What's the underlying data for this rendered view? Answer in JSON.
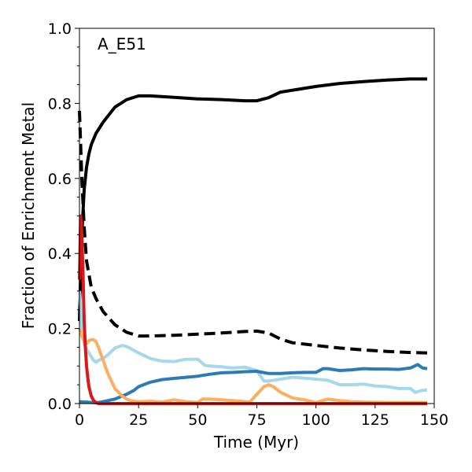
{
  "chart_data": {
    "type": "line",
    "title": "",
    "annotation": "A_E51",
    "xlabel": "Time (Myr)",
    "ylabel": "Fraction of Enrichment Metal",
    "xlim": [
      0,
      150
    ],
    "ylim": [
      0,
      1.0
    ],
    "xticks": [
      0,
      25,
      50,
      75,
      100,
      125,
      150
    ],
    "yticks": [
      0.0,
      0.2,
      0.4,
      0.6,
      0.8,
      1.0
    ],
    "xtick_labels": [
      "0",
      "25",
      "50",
      "75",
      "100",
      "125",
      "150"
    ],
    "ytick_labels": [
      "0.0",
      "0.2",
      "0.4",
      "0.6",
      "0.8",
      "1.0"
    ],
    "grid": false,
    "series": [
      {
        "name": "black-solid",
        "color": "#000000",
        "dash": "solid",
        "x": [
          0,
          0.5,
          1,
          2,
          3,
          4,
          5,
          7,
          10,
          15,
          20,
          25,
          30,
          40,
          50,
          60,
          70,
          75,
          80,
          85,
          90,
          100,
          110,
          120,
          130,
          140,
          147
        ],
        "y": [
          0.22,
          0.35,
          0.45,
          0.57,
          0.63,
          0.665,
          0.69,
          0.72,
          0.75,
          0.79,
          0.81,
          0.82,
          0.82,
          0.816,
          0.812,
          0.81,
          0.807,
          0.807,
          0.815,
          0.83,
          0.835,
          0.845,
          0.853,
          0.858,
          0.862,
          0.865,
          0.865
        ]
      },
      {
        "name": "black-dashed",
        "color": "#000000",
        "dash": "dashed",
        "x": [
          0,
          1,
          2,
          3,
          5,
          7,
          10,
          15,
          20,
          25,
          30,
          40,
          50,
          60,
          70,
          75,
          80,
          85,
          90,
          100,
          110,
          120,
          130,
          140,
          147
        ],
        "y": [
          0.78,
          0.6,
          0.47,
          0.38,
          0.31,
          0.28,
          0.245,
          0.21,
          0.19,
          0.18,
          0.18,
          0.182,
          0.185,
          0.188,
          0.192,
          0.193,
          0.188,
          0.172,
          0.162,
          0.155,
          0.148,
          0.143,
          0.139,
          0.136,
          0.135
        ]
      },
      {
        "name": "light-blue",
        "color": "#a6d8ec",
        "dash": "solid",
        "x": [
          0,
          1,
          2,
          3,
          4,
          5,
          6,
          7,
          8,
          10,
          12,
          15,
          18,
          20,
          22,
          25,
          30,
          35,
          40,
          45,
          50,
          53,
          55,
          60,
          65,
          70,
          75,
          78,
          80,
          85,
          90,
          95,
          100,
          105,
          110,
          115,
          120,
          125,
          130,
          135,
          140,
          142,
          145,
          147
        ],
        "y": [
          0.3,
          0.2,
          0.16,
          0.145,
          0.135,
          0.125,
          0.115,
          0.11,
          0.115,
          0.12,
          0.13,
          0.148,
          0.155,
          0.152,
          0.145,
          0.135,
          0.12,
          0.113,
          0.112,
          0.118,
          0.118,
          0.102,
          0.1,
          0.098,
          0.095,
          0.097,
          0.088,
          0.06,
          0.06,
          0.065,
          0.07,
          0.068,
          0.065,
          0.062,
          0.05,
          0.05,
          0.052,
          0.047,
          0.045,
          0.04,
          0.04,
          0.03,
          0.035,
          0.036
        ]
      },
      {
        "name": "dark-blue",
        "color": "#2c7bb6",
        "dash": "solid",
        "x": [
          0,
          3,
          5,
          7,
          8,
          10,
          15,
          20,
          23,
          25,
          30,
          35,
          40,
          45,
          50,
          55,
          60,
          65,
          70,
          75,
          80,
          85,
          90,
          95,
          100,
          103,
          105,
          110,
          115,
          120,
          125,
          130,
          135,
          140,
          143,
          145,
          147
        ],
        "y": [
          0.005,
          0.004,
          0.003,
          0.002,
          0.003,
          0.005,
          0.012,
          0.025,
          0.035,
          0.045,
          0.057,
          0.064,
          0.067,
          0.07,
          0.073,
          0.078,
          0.082,
          0.083,
          0.085,
          0.086,
          0.08,
          0.08,
          0.082,
          0.083,
          0.083,
          0.093,
          0.093,
          0.088,
          0.09,
          0.093,
          0.092,
          0.092,
          0.091,
          0.095,
          0.104,
          0.095,
          0.093
        ]
      },
      {
        "name": "orange",
        "color": "#fdae61",
        "dash": "solid",
        "x": [
          0,
          1,
          2,
          3,
          4,
          5,
          6,
          7,
          8,
          10,
          12,
          15,
          18,
          20,
          22,
          25,
          30,
          35,
          40,
          45,
          50,
          52,
          55,
          60,
          65,
          70,
          72,
          75,
          78,
          80,
          82,
          85,
          90,
          95,
          100,
          105,
          110,
          115,
          120,
          130,
          140,
          147
        ],
        "y": [
          0.2,
          0.18,
          0.165,
          0.16,
          0.168,
          0.17,
          0.17,
          0.165,
          0.15,
          0.115,
          0.08,
          0.04,
          0.02,
          0.012,
          0.007,
          0.005,
          0.006,
          0.004,
          0.01,
          0.005,
          0.003,
          0.012,
          0.012,
          0.01,
          0.008,
          0.005,
          0.004,
          0.025,
          0.045,
          0.05,
          0.045,
          0.03,
          0.015,
          0.01,
          0.003,
          0.012,
          0.008,
          0.005,
          0.004,
          0.003,
          0.003,
          0.003
        ]
      },
      {
        "name": "red",
        "color": "#d7191c",
        "dash": "solid",
        "x": [
          0,
          0.5,
          1,
          1.5,
          2,
          2.5,
          3,
          3.5,
          4,
          5,
          6,
          7,
          8,
          10,
          15,
          20,
          30,
          50,
          75,
          100,
          125,
          147
        ],
        "y": [
          0.33,
          0.5,
          0.45,
          0.35,
          0.22,
          0.15,
          0.1,
          0.07,
          0.045,
          0.02,
          0.008,
          0.003,
          0.0,
          0.0,
          0.0,
          0.0,
          0.0,
          0.0,
          0.0,
          0.0,
          0.0,
          0.0
        ]
      }
    ]
  }
}
